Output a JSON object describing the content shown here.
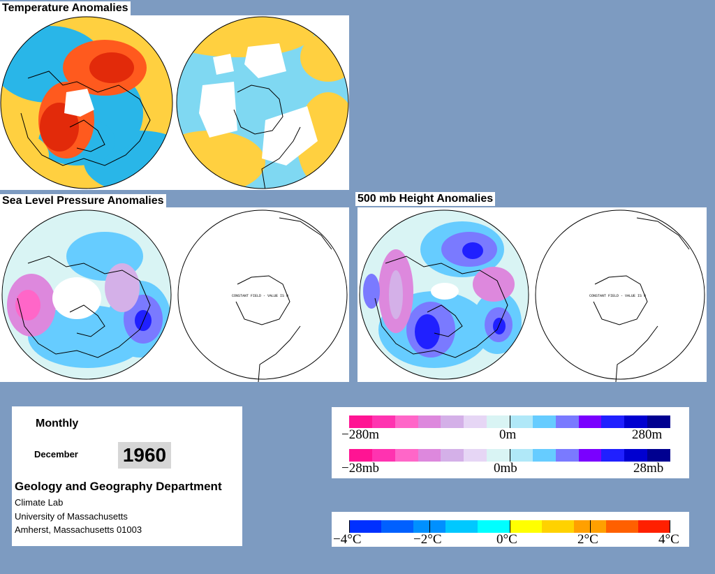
{
  "titles": {
    "temperature": "Temperature Anomalies",
    "slp": "Sea Level Pressure Anomalies",
    "height": "500 mb Height Anomalies"
  },
  "map_notes": {
    "constant_field": "CONSTANT FIELD - VALUE IS 0"
  },
  "info": {
    "period": "Monthly",
    "month": "December",
    "year": "1960",
    "department": "Geology and Geography Department",
    "lab": "Climate Lab",
    "university": "University of Massachusetts",
    "address": "Amherst, Massachusetts 01003"
  },
  "legends": {
    "height": {
      "min": "−280m",
      "mid": "0m",
      "max": "280m"
    },
    "slp": {
      "min": "−28mb",
      "mid": "0mb",
      "max": "28mb"
    },
    "temperature": {
      "t1": "−4°C",
      "t2": "−2°C",
      "t3": "0°C",
      "t4": "2°C",
      "t5": "4°C"
    }
  },
  "colors": {
    "background": "#7d9bc1",
    "anomaly_scale": [
      "#ff1493",
      "#ff33b0",
      "#ff66c8",
      "#dd88dd",
      "#d4b0e8",
      "#e6d6f5",
      "#d9f4f4",
      "#b0e8f8",
      "#66ccff",
      "#7a7aff",
      "#7a00ff",
      "#2020ff",
      "#0000d0",
      "#000090"
    ],
    "temperature_scale": [
      "#0030ff",
      "#0060ff",
      "#0090ff",
      "#00c8ff",
      "#00ffff",
      "#ffff00",
      "#ffd200",
      "#ffa000",
      "#ff6000",
      "#ff2000"
    ],
    "temp_map": {
      "cold": "#29b6e8",
      "cool": "#7fd8f2",
      "warm": "#ffd040",
      "hot": "#ff5a1e",
      "very_hot": "#e22a0a"
    }
  }
}
